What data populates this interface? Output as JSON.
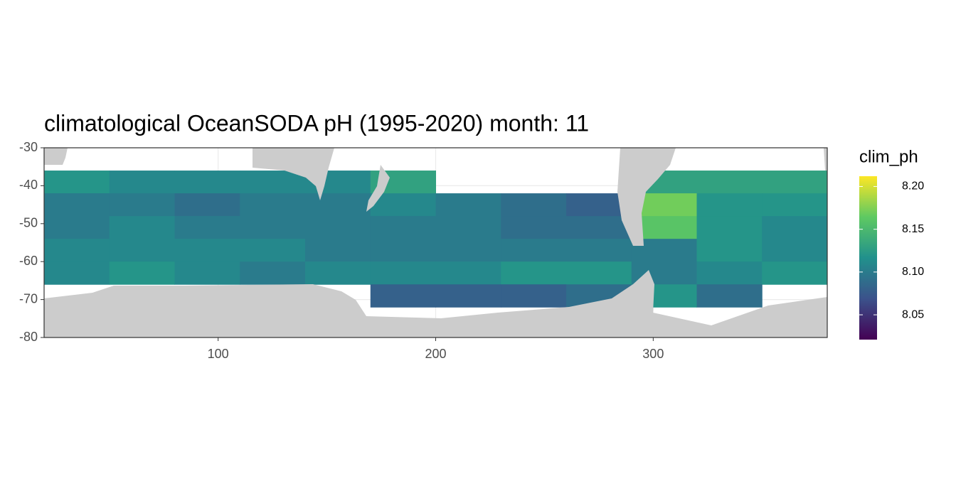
{
  "chart_data": {
    "type": "raster",
    "title": "climatological OceanSODA pH (1995-2020) month: 11",
    "x": [
      35,
      65,
      95,
      125,
      155,
      185,
      215,
      245,
      275,
      305,
      335,
      365
    ],
    "y": [
      -39,
      -45,
      -51,
      -57,
      -63,
      -69
    ],
    "values": [
      [
        8.12,
        8.11,
        8.11,
        8.11,
        8.11,
        8.13,
        null,
        null,
        null,
        8.13,
        8.13,
        8.13
      ],
      [
        8.1,
        8.1,
        8.09,
        8.1,
        8.1,
        8.11,
        8.1,
        8.09,
        8.08,
        8.17,
        8.12,
        8.12
      ],
      [
        8.1,
        8.11,
        8.1,
        8.1,
        8.1,
        8.1,
        8.1,
        8.09,
        8.09,
        8.16,
        8.12,
        8.11
      ],
      [
        8.11,
        8.11,
        8.11,
        8.11,
        8.1,
        8.1,
        8.1,
        8.1,
        8.1,
        8.1,
        8.12,
        8.11
      ],
      [
        8.11,
        8.12,
        8.11,
        8.1,
        8.11,
        8.11,
        8.11,
        8.12,
        8.12,
        8.1,
        8.11,
        8.12
      ],
      [
        null,
        null,
        null,
        null,
        null,
        8.08,
        8.08,
        8.08,
        8.09,
        8.12,
        8.09,
        null
      ]
    ],
    "xlim": [
      20,
      380
    ],
    "ylim": [
      -80,
      -30
    ],
    "xticks": [
      100,
      200,
      300
    ],
    "yticks": [
      -30,
      -40,
      -50,
      -60,
      -70,
      -80
    ],
    "grid": true,
    "legend": {
      "title": "clim_ph",
      "limits": [
        8.021,
        8.212
      ],
      "ticks": [
        8.05,
        {
          "value": 8.1,
          "label": "8.10"
        },
        8.15,
        {
          "value": 8.2,
          "label": "8.20"
        }
      ],
      "colormap": [
        "#440154",
        "#3b528b",
        "#21918c",
        "#5ec962",
        "#fde725"
      ]
    }
  }
}
